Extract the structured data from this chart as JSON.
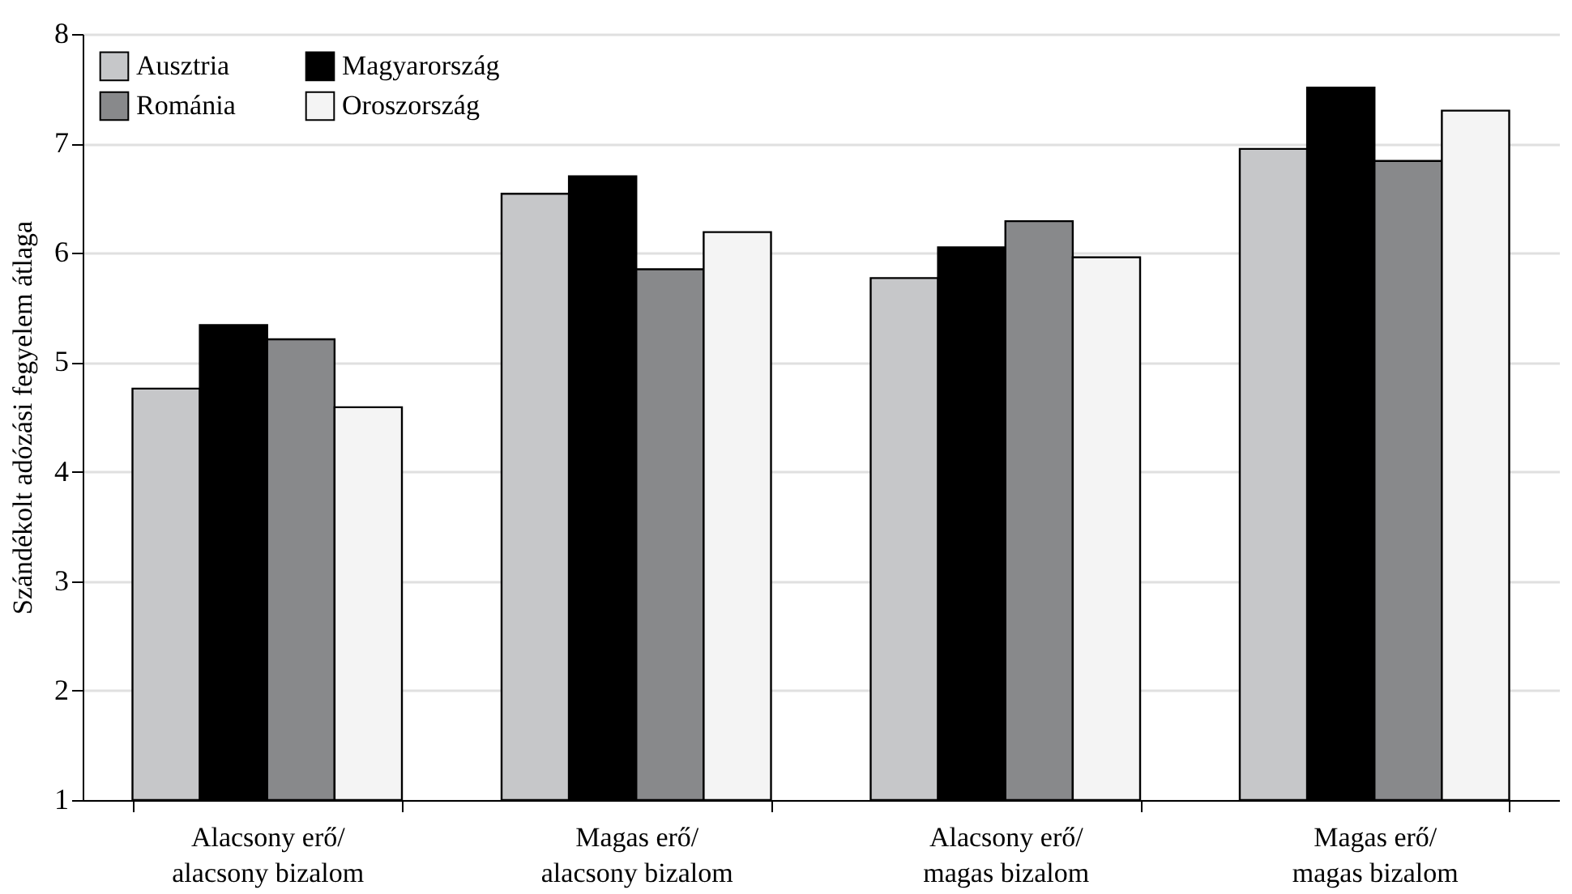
{
  "chart_data": {
    "type": "bar",
    "ylabel": "Szándékolt adózási fegyelem átlaga",
    "categories": [
      "Alacsony erő/\nalacsony bizalom",
      "Magas erő/\nalacsony bizalom",
      "Alacsony erő/\nmagas bizalom",
      "Magas erő/\nmagas bizalom"
    ],
    "series": [
      {
        "name": "Ausztria",
        "color": "#c6c7c9",
        "values": [
          4.76,
          6.54,
          5.77,
          6.95
        ]
      },
      {
        "name": "Magyarország",
        "color": "#000000",
        "values": [
          5.34,
          6.7,
          6.05,
          7.51
        ]
      },
      {
        "name": "Románia",
        "color": "#88898b",
        "values": [
          5.21,
          5.85,
          6.29,
          6.84
        ]
      },
      {
        "name": "Oroszország",
        "color": "#f4f4f4",
        "values": [
          4.59,
          6.19,
          5.96,
          7.3
        ]
      }
    ],
    "ylim": [
      1,
      8
    ],
    "yticks": [
      1,
      2,
      3,
      4,
      5,
      6,
      7,
      8
    ],
    "grid": "y",
    "legend": "top left"
  }
}
